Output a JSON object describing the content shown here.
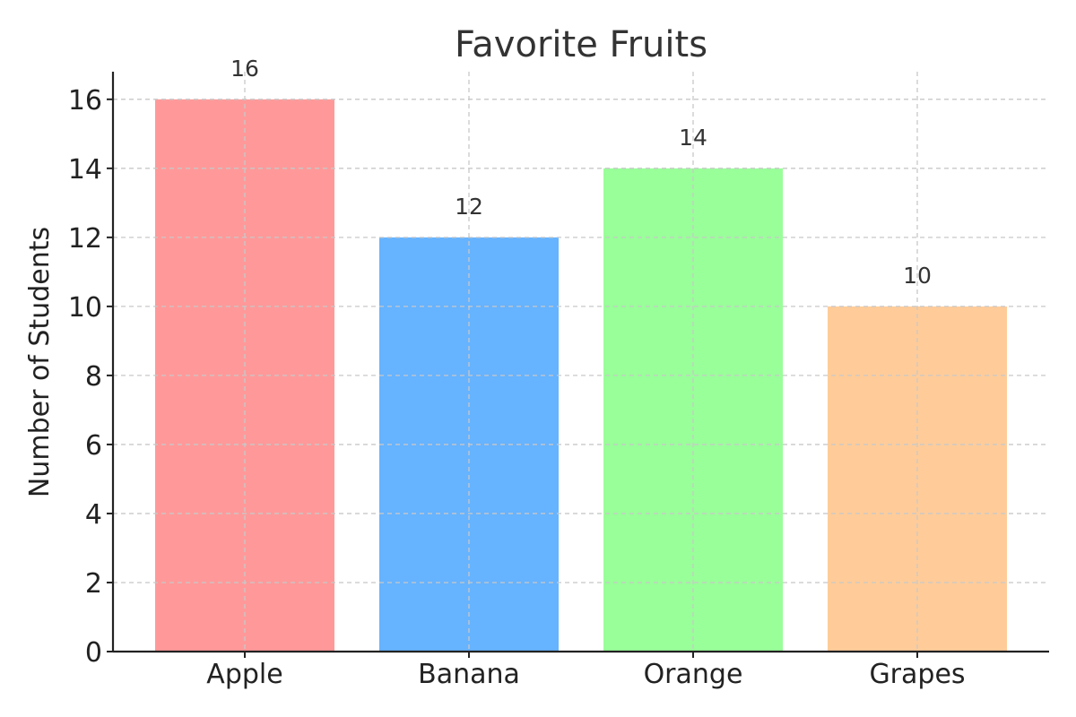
{
  "chart_data": {
    "type": "bar",
    "title": "Favorite Fruits",
    "xlabel": "",
    "ylabel": "Number of Students",
    "categories": [
      "Apple",
      "Banana",
      "Orange",
      "Grapes"
    ],
    "values": [
      16,
      12,
      14,
      10
    ],
    "data_labels": [
      "16",
      "12",
      "14",
      "10"
    ],
    "colors": [
      "#ff9999",
      "#66b3ff",
      "#99ff99",
      "#ffcc99"
    ],
    "ylim": [
      0,
      16.8
    ],
    "yticks": [
      0,
      2,
      4,
      6,
      8,
      10,
      12,
      14,
      16
    ],
    "grid": true,
    "legend": "none"
  }
}
